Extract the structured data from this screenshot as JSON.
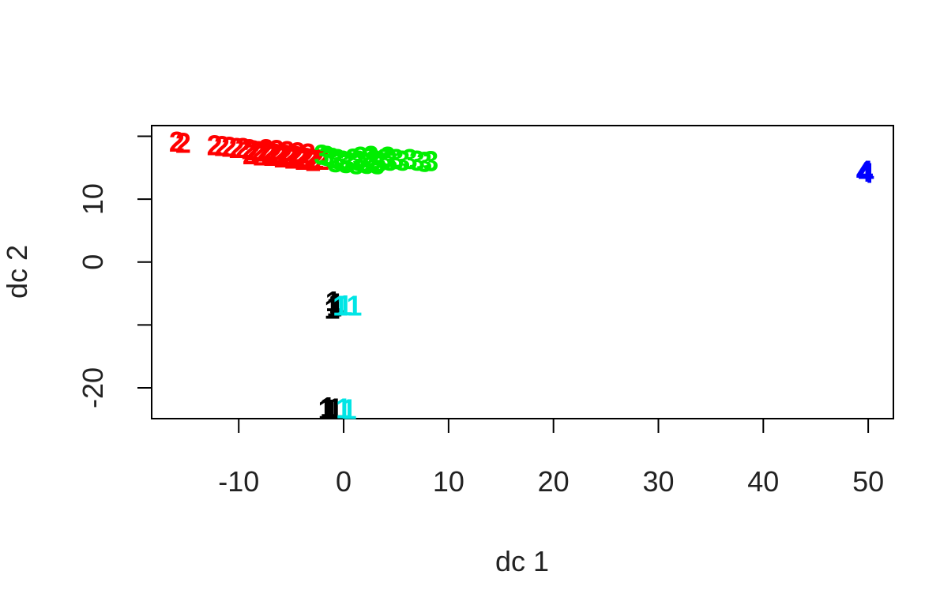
{
  "chart_data": {
    "type": "scatter",
    "xlabel": "dc 1",
    "ylabel": "dc 2",
    "xlim": [
      -18.3,
      52.4
    ],
    "ylim": [
      -24.9,
      21.7
    ],
    "xticks": [
      -10,
      0,
      10,
      20,
      30,
      40,
      50
    ],
    "yticks": [
      -20,
      -10,
      0,
      10,
      20
    ],
    "ytick_labels": [
      "-20",
      "",
      "0",
      "10",
      ""
    ],
    "colors": {
      "axis": "#000000",
      "text": "#222222"
    },
    "series": [
      {
        "label": "2",
        "color": "#ff0000",
        "points": [
          [
            -15.9,
            19.2
          ],
          [
            -15.3,
            19.0
          ],
          [
            -12.3,
            18.6
          ],
          [
            -11.6,
            18.5
          ],
          [
            -10.9,
            18.4
          ],
          [
            -10.2,
            18.2
          ],
          [
            -9.6,
            18.2
          ],
          [
            -9.0,
            18.0
          ],
          [
            -8.6,
            17.8
          ],
          [
            -8.1,
            17.7
          ],
          [
            -7.6,
            17.6
          ],
          [
            -7.1,
            17.4
          ],
          [
            -6.6,
            17.3
          ],
          [
            -6.1,
            17.2
          ],
          [
            -5.6,
            17.1
          ],
          [
            -5.1,
            17.0
          ],
          [
            -4.6,
            16.9
          ],
          [
            -4.1,
            16.7
          ],
          [
            -3.6,
            16.6
          ],
          [
            -3.1,
            16.5
          ],
          [
            -2.6,
            16.4
          ],
          [
            -2.1,
            16.3
          ],
          [
            -8.9,
            17.2
          ],
          [
            -7.9,
            17.0
          ],
          [
            -6.9,
            16.9
          ],
          [
            -5.9,
            16.7
          ],
          [
            -4.9,
            16.5
          ],
          [
            -3.9,
            16.3
          ],
          [
            -2.9,
            16.1
          ],
          [
            -6.4,
            17.9
          ],
          [
            -5.4,
            17.7
          ],
          [
            -4.4,
            17.5
          ],
          [
            -3.4,
            17.3
          ],
          [
            -7.4,
            18.0
          ]
        ]
      },
      {
        "label": "3",
        "color": "#00ee00",
        "points": [
          [
            -2.1,
            17.1
          ],
          [
            -1.6,
            16.9
          ],
          [
            -1.1,
            16.6
          ],
          [
            -0.6,
            16.4
          ],
          [
            -0.1,
            16.2
          ],
          [
            0.4,
            16.0
          ],
          [
            0.9,
            16.5
          ],
          [
            1.4,
            16.2
          ],
          [
            1.9,
            16.0
          ],
          [
            2.4,
            16.6
          ],
          [
            2.9,
            16.3
          ],
          [
            3.4,
            16.0
          ],
          [
            3.9,
            16.5
          ],
          [
            4.4,
            16.2
          ],
          [
            5.0,
            16.4
          ],
          [
            5.6,
            16.2
          ],
          [
            6.3,
            16.4
          ],
          [
            7.0,
            16.2
          ],
          [
            7.7,
            16.0
          ],
          [
            8.3,
            16.1
          ],
          [
            0.2,
            15.8
          ],
          [
            1.2,
            15.6
          ],
          [
            2.2,
            15.7
          ],
          [
            3.2,
            15.6
          ],
          [
            -0.8,
            15.9
          ],
          [
            2.6,
            16.9
          ],
          [
            1.6,
            16.8
          ],
          [
            4.2,
            16.8
          ]
        ]
      },
      {
        "label": "1",
        "color": "#000000",
        "points": [
          [
            -1.0,
            -6.2
          ],
          [
            -0.9,
            -7.0
          ],
          [
            -0.7,
            -6.5
          ],
          [
            -1.1,
            -7.4
          ],
          [
            -1.7,
            -23.3
          ],
          [
            -1.2,
            -23.4
          ],
          [
            -0.8,
            -23.2
          ],
          [
            -1.5,
            -23.0
          ]
        ]
      },
      {
        "label": "1",
        "color": "#00e5e5",
        "points": [
          [
            -0.3,
            -6.9
          ],
          [
            0.1,
            -6.8
          ],
          [
            1.0,
            -6.9
          ],
          [
            0.0,
            -23.2
          ],
          [
            0.5,
            -23.3
          ]
        ]
      },
      {
        "label": "4",
        "color": "#0000ff",
        "points": [
          [
            49.6,
            14.4
          ],
          [
            49.8,
            14.2
          ],
          [
            49.7,
            14.6
          ]
        ]
      }
    ]
  }
}
